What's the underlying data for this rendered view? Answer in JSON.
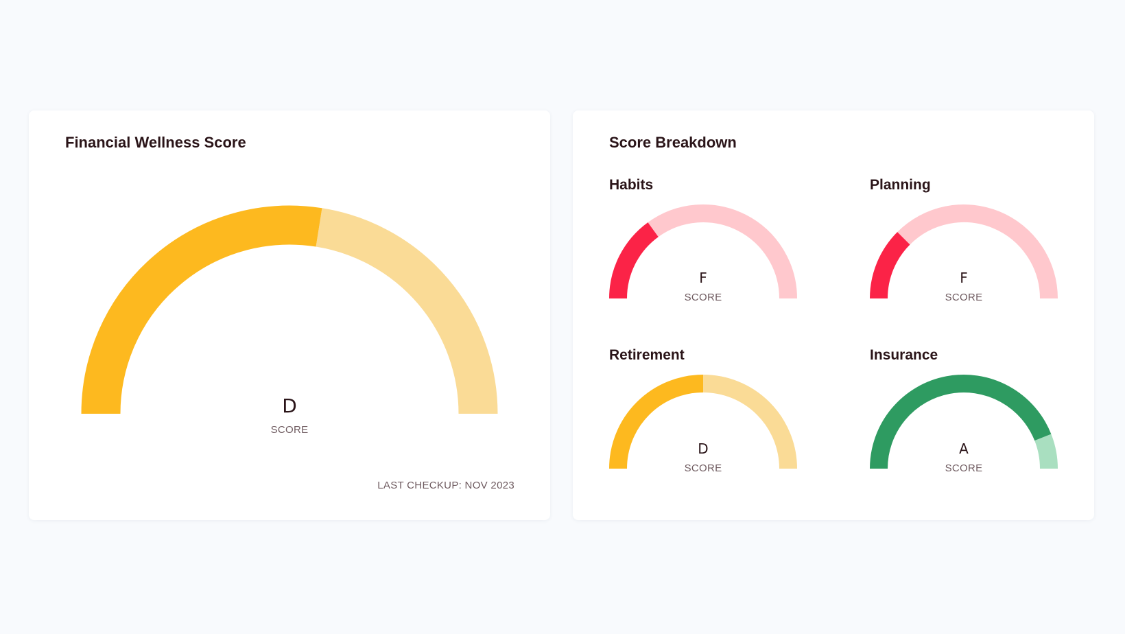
{
  "overall": {
    "title": "Financial Wellness Score",
    "grade": "D",
    "score_label": "SCORE",
    "fraction": 0.55,
    "fill_color": "#fdb91f",
    "track_color": "#fadb96",
    "last_checkup": "LAST CHECKUP: NOV 2023"
  },
  "breakdown": {
    "title": "Score Breakdown",
    "items": [
      {
        "name": "Habits",
        "grade": "F",
        "score_label": "SCORE",
        "fraction": 0.3,
        "fill_color": "#fb2347",
        "track_color": "#ffc8cd"
      },
      {
        "name": "Planning",
        "grade": "F",
        "score_label": "SCORE",
        "fraction": 0.25,
        "fill_color": "#fb2347",
        "track_color": "#ffc8cd"
      },
      {
        "name": "Retirement",
        "grade": "D",
        "score_label": "SCORE",
        "fraction": 0.5,
        "fill_color": "#fdb91f",
        "track_color": "#fadb96"
      },
      {
        "name": "Insurance",
        "grade": "A",
        "score_label": "SCORE",
        "fraction": 0.88,
        "fill_color": "#2e9b61",
        "track_color": "#a9dfc0"
      }
    ]
  }
}
